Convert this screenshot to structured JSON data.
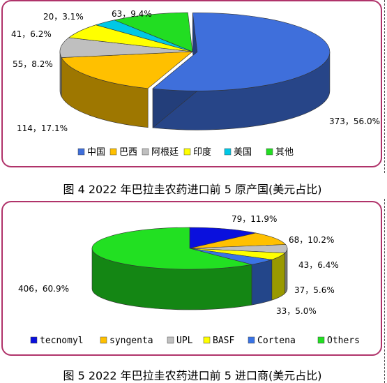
{
  "figures": [
    {
      "caption": "图 4  2022 年巴拉圭农药进口前 5 原产国(美元占比)",
      "legend": [
        "中国",
        "巴西",
        "阿根廷",
        "印度",
        "美国",
        "其他"
      ]
    },
    {
      "caption": "图 5  2022 年巴拉圭农药进口前 5 进口商(美元占比)",
      "legend": [
        "tecnomyl",
        "syngenta",
        "UPL",
        "BASF",
        "Cortena",
        "Others"
      ]
    }
  ],
  "chart_data": [
    {
      "type": "pie",
      "style": "3d-exploded",
      "title": "图 4  2022 年巴拉圭农药进口前 5 原产国(美元占比)",
      "legend_position": "bottom",
      "slices": [
        {
          "name": "中国",
          "value": 373,
          "percent": 56.0,
          "label": "373，56.0%",
          "color": "#3f6fdb"
        },
        {
          "name": "巴西",
          "value": 114,
          "percent": 17.1,
          "label": "114，17.1%",
          "color": "#ffc000"
        },
        {
          "name": "阿根廷",
          "value": 55,
          "percent": 8.2,
          "label": "55，8.2%",
          "color": "#bfbfbf"
        },
        {
          "name": "印度",
          "value": 41,
          "percent": 6.2,
          "label": "41，6.2%",
          "color": "#ffff00"
        },
        {
          "name": "美国",
          "value": 20,
          "percent": 3.1,
          "label": "20，3.1%",
          "color": "#00c8e6"
        },
        {
          "name": "其他",
          "value": 63,
          "percent": 9.4,
          "label": "63，9.4%",
          "color": "#22dd22"
        }
      ]
    },
    {
      "type": "pie",
      "style": "3d",
      "title": "图 5  2022 年巴拉圭农药进口前 5 进口商(美元占比)",
      "legend_position": "bottom",
      "slices": [
        {
          "name": "tecnomyl",
          "value": 79,
          "percent": 11.9,
          "label": "79，11.9%",
          "color": "#0a10dd"
        },
        {
          "name": "syngenta",
          "value": 68,
          "percent": 10.2,
          "label": "68，10.2%",
          "color": "#ffc000"
        },
        {
          "name": "UPL",
          "value": 43,
          "percent": 6.4,
          "label": "43，6.4%",
          "color": "#c0c0c0"
        },
        {
          "name": "BASF",
          "value": 37,
          "percent": 5.6,
          "label": "37，5.6%",
          "color": "#ffff00"
        },
        {
          "name": "Cortena",
          "value": 33,
          "percent": 5.0,
          "label": "33，5.0%",
          "color": "#3a74e6"
        },
        {
          "name": "Others",
          "value": 406,
          "percent": 60.9,
          "label": "406，60.9%",
          "color": "#22e022"
        }
      ]
    }
  ]
}
